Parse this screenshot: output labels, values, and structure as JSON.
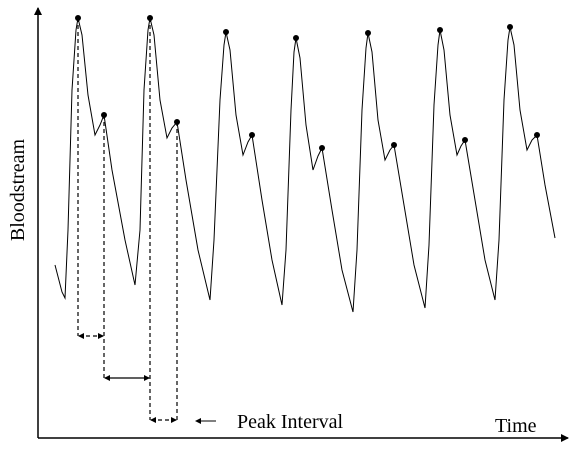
{
  "axes": {
    "y_label": "Bloodstream",
    "x_label": "Time"
  },
  "annotation": {
    "label": "Peak Interval"
  }
}
